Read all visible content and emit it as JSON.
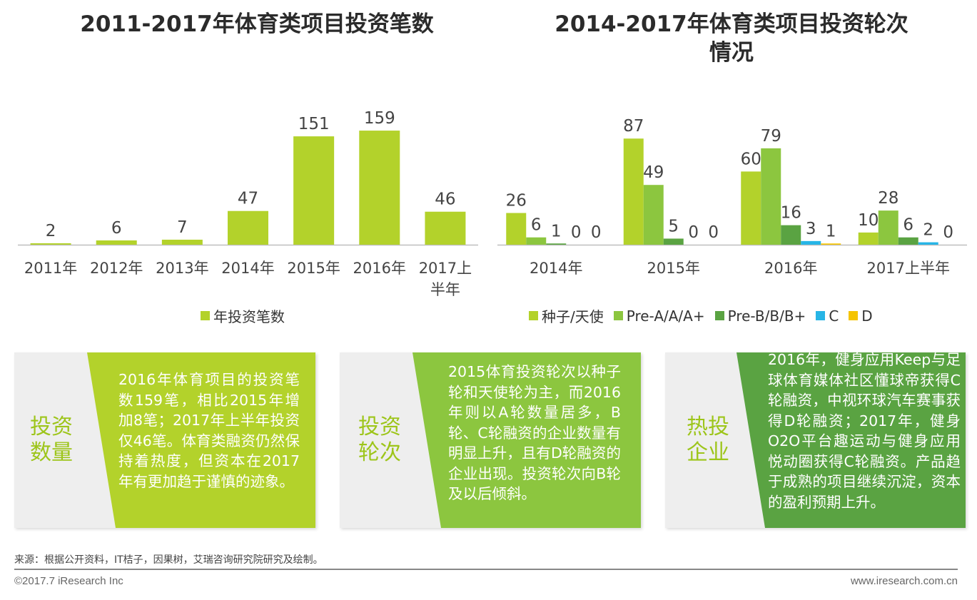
{
  "colors": {
    "lime": "#b3d22b",
    "green": "#8cc63f",
    "darkgreen": "#5aa342",
    "cyan": "#27b5e6",
    "yellow": "#f5c400",
    "card_label": "#9dc51a"
  },
  "chart_data": [
    {
      "type": "bar",
      "title": "2011-2017年体育类项目投资笔数",
      "categories": [
        "2011年",
        "2012年",
        "2013年",
        "2014年",
        "2015年",
        "2016年",
        "2017上半年"
      ],
      "series": [
        {
          "name": "年投资笔数",
          "color": "#b3d22b",
          "values": [
            2,
            6,
            7,
            47,
            151,
            159,
            46
          ]
        }
      ],
      "ylim": [
        0,
        170
      ],
      "grid": false,
      "legend": "bottom"
    },
    {
      "type": "bar",
      "title": "2014-2017年体育类项目投资轮次情况",
      "categories": [
        "2014年",
        "2015年",
        "2016年",
        "2017上半年"
      ],
      "series": [
        {
          "name": "种子/天使",
          "color": "#b3d22b",
          "values": [
            26,
            87,
            60,
            10
          ]
        },
        {
          "name": "Pre-A/A/A+",
          "color": "#8cc63f",
          "values": [
            6,
            49,
            79,
            28
          ]
        },
        {
          "name": "Pre-B/B/B+",
          "color": "#5aa342",
          "values": [
            1,
            5,
            16,
            6
          ]
        },
        {
          "name": "C",
          "color": "#27b5e6",
          "values": [
            0,
            0,
            3,
            2
          ]
        },
        {
          "name": "D",
          "color": "#f5c400",
          "values": [
            0,
            0,
            1,
            0
          ]
        }
      ],
      "ylim": [
        0,
        100
      ],
      "grid": false,
      "legend": "bottom"
    }
  ],
  "cards": [
    {
      "label_lines": [
        "投资",
        "数量"
      ],
      "text": "2016年体育项目的投资笔数159笔，相比2015年增加8笔；2017年上半年投资仅46笔。体育类融资仍然保持着热度，但资本在2017年有更加趋于谨慎的迹象。",
      "color": "#b3d22b"
    },
    {
      "label_lines": [
        "投资",
        "轮次"
      ],
      "text": "2015体育投资轮次以种子轮和天使轮为主，而2016年则以A轮数量居多，B轮、C轮融资的企业数量有明显上升，且有D轮融资的企业出现。投资轮次向B轮及以后倾斜。",
      "color": "#8cc63f"
    },
    {
      "label_lines": [
        "热投",
        "企业"
      ],
      "text": "2016年，健身应用Keep与足球体育媒体社区懂球帝获得C轮融资，中视环球汽车赛事获得D轮融资；2017年，健身O2O平台趣运动与健身应用悦动圈获得C轮融资。产品趋于成熟的项目继续沉淀，资本的盈利预期上升。",
      "color": "#5aa342"
    }
  ],
  "footer": {
    "source": "来源：根据公开资料，IT桔子，因果树，艾瑞咨询研究院研究及绘制。",
    "copyright": "©2017.7 iResearch Inc",
    "website": "www.iresearch.com.cn"
  }
}
